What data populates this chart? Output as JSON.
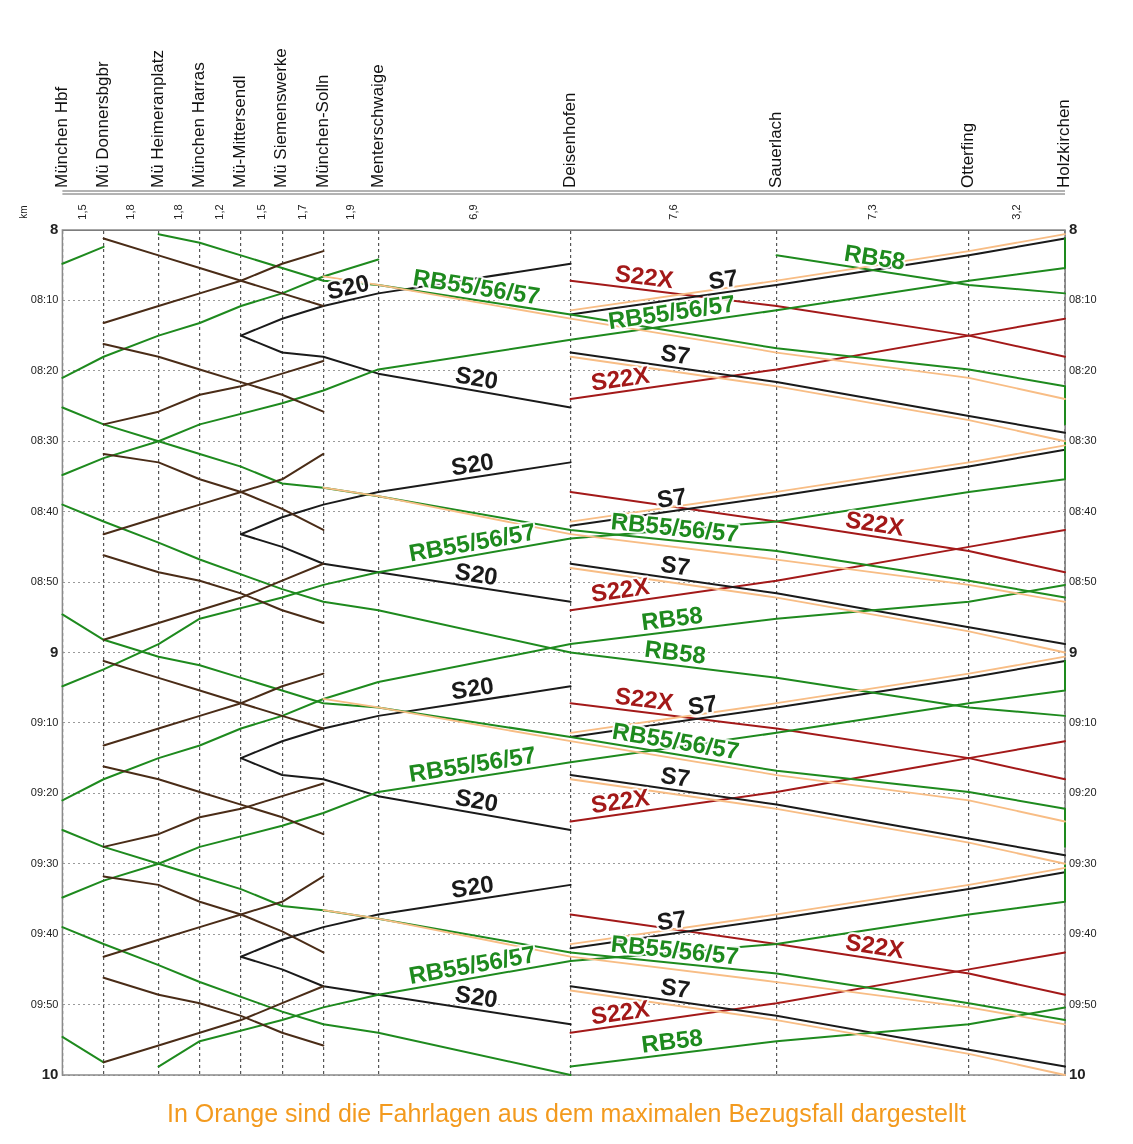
{
  "chart_data": {
    "type": "line",
    "categories": [
      "München Hbf",
      null,
      null,
      "Mü Donnersbgbr",
      null,
      null,
      null,
      "Mü Heimeranplatz",
      null,
      null,
      "München Harras",
      null,
      null,
      "Mü-Mittersendl",
      null,
      null,
      "Mü Siemenswerke",
      null,
      null,
      "München-Solln",
      null,
      null,
      null,
      "Menterschwaige",
      null,
      null,
      null,
      null,
      null,
      null,
      null,
      null,
      null,
      null,
      null,
      null,
      null,
      "Deisenhofen",
      null,
      null,
      null,
      null,
      null,
      null,
      null,
      null,
      null,
      null,
      null,
      null,
      null,
      null,
      "Sauerlach",
      null,
      null,
      null,
      null,
      null,
      null,
      null,
      null,
      null,
      null,
      null,
      null,
      null,
      "Otterfing",
      null,
      null,
      null,
      null,
      null,
      null,
      "Holzkirchen"
    ],
    "ylim": [
      10,
      8
    ],
    "y2lim": [
      10,
      8
    ],
    "yticks": [
      8,
      {
        "value": 8.1667,
        "label": "08:10"
      },
      {
        "value": 8.3333,
        "label": "08:20"
      },
      {
        "value": 8.5,
        "label": "08:30"
      },
      {
        "value": 8.6667,
        "label": "08:40"
      },
      {
        "value": 8.8333,
        "label": "08:50"
      },
      9,
      {
        "value": 9.1667,
        "label": "09:10"
      },
      {
        "value": 9.3333,
        "label": "09:20"
      },
      {
        "value": 9.5,
        "label": "09:30"
      },
      {
        "value": 9.6667,
        "label": "09:40"
      },
      {
        "value": 9.8333,
        "label": "09:50"
      },
      10
    ],
    "y2ticks": [
      8,
      {
        "value": 8.1667,
        "label": "08:10"
      },
      {
        "value": 8.3333,
        "label": "08:20"
      },
      {
        "value": 8.5,
        "label": "08:30"
      },
      {
        "value": 8.6667,
        "label": "08:40"
      },
      {
        "value": 8.8333,
        "label": "08:50"
      },
      9,
      {
        "value": 9.1667,
        "label": "09:10"
      },
      {
        "value": 9.3333,
        "label": "09:20"
      },
      {
        "value": 9.5,
        "label": "09:30"
      },
      {
        "value": 9.6667,
        "label": "09:40"
      },
      {
        "value": 9.8333,
        "label": "09:50"
      },
      10
    ],
    "grid": true,
    "legend": false,
    "marker": "none",
    "line_style": "solid",
    "series": [
      {
        "color": "#f8bd85",
        "x": [
          "Holzkirchen",
          "Otterfing",
          "Sauerlach",
          "Deisenhofen"
        ],
        "values": [
          8.01,
          8.05,
          8.12,
          8.19
        ]
      },
      {
        "color": "#f8bd85",
        "x": [
          "Deisenhofen",
          "Sauerlach",
          "Otterfing",
          "Holzkirchen"
        ],
        "values": [
          8.3,
          8.37,
          8.45,
          8.5
        ]
      },
      {
        "color": "#f8bd85",
        "x": [
          "Holzkirchen",
          "Otterfing",
          "Sauerlach",
          "Deisenhofen"
        ],
        "values": [
          8.51,
          8.55,
          8.62,
          8.69
        ]
      },
      {
        "color": "#f8bd85",
        "x": [
          "Deisenhofen",
          "Sauerlach",
          "Otterfing",
          "Holzkirchen"
        ],
        "values": [
          8.8,
          8.87,
          8.95,
          9.0
        ]
      },
      {
        "color": "#f8bd85",
        "x": [
          "München-Solln",
          "Menterschwaige",
          "Deisenhofen",
          "Sauerlach",
          "Otterfing",
          "Holzkirchen"
        ],
        "values": [
          8.61,
          8.63,
          8.72,
          8.78,
          8.84,
          8.88
        ]
      },
      {
        "color": "#f8bd85",
        "x": [
          "München-Solln",
          "Menterschwaige",
          "Deisenhofen",
          "Sauerlach",
          "Otterfing",
          "Holzkirchen"
        ],
        "values": [
          8.11,
          8.13,
          8.21,
          8.29,
          8.35,
          8.4
        ]
      },
      {
        "color": "#f8bd85",
        "x": [
          "Holzkirchen",
          "Otterfing",
          "Sauerlach",
          "Deisenhofen"
        ],
        "values": [
          9.01,
          9.05,
          9.12,
          9.19
        ]
      },
      {
        "color": "#f8bd85",
        "x": [
          "Deisenhofen",
          "Sauerlach",
          "Otterfing",
          "Holzkirchen"
        ],
        "values": [
          9.3,
          9.37,
          9.45,
          9.5
        ]
      },
      {
        "color": "#f8bd85",
        "x": [
          "Holzkirchen",
          "Otterfing",
          "Sauerlach",
          "Deisenhofen"
        ],
        "values": [
          9.51,
          9.55,
          9.62,
          9.69
        ]
      },
      {
        "color": "#f8bd85",
        "x": [
          "Deisenhofen",
          "Sauerlach",
          "Otterfing",
          "Holzkirchen"
        ],
        "values": [
          9.8,
          9.87,
          9.95,
          10.0
        ]
      },
      {
        "color": "#f8bd85",
        "x": [
          "München-Solln",
          "Menterschwaige",
          "Deisenhofen",
          "Sauerlach",
          "Otterfing",
          "Holzkirchen"
        ],
        "values": [
          9.61,
          9.63,
          9.72,
          9.78,
          9.84,
          9.88
        ]
      },
      {
        "color": "#f8bd85",
        "x": [
          "München-Solln",
          "Menterschwaige",
          "Deisenhofen",
          "Sauerlach",
          "Otterfing",
          "Holzkirchen"
        ],
        "values": [
          9.11,
          9.13,
          9.21,
          9.29,
          9.35,
          9.4
        ]
      },
      {
        "color": "#4a2c17",
        "x": [
          "Mü Donnersbgbr",
          "Mü Heimeranplatz",
          "München Harras",
          "Mü-Mittersendl",
          "Mü Siemenswerke",
          "München-Solln"
        ],
        "values": [
          8.02,
          8.06,
          8.09,
          8.12,
          8.15,
          8.18
        ]
      },
      {
        "color": "#4a2c17",
        "x": [
          "München-Solln",
          "Mü Siemenswerke",
          "Mü-Mittersendl",
          "München Harras",
          "Mü Heimeranplatz",
          "Mü Donnersbgbr"
        ],
        "values": [
          8.05,
          8.08,
          8.12,
          8.15,
          8.18,
          8.22
        ]
      },
      {
        "color": "#4a2c17",
        "x": [
          "Mü Donnersbgbr",
          "Mü Heimeranplatz",
          "München Harras",
          "Mü-Mittersendl",
          "Mü Siemenswerke",
          "München-Solln"
        ],
        "values": [
          8.27,
          8.3,
          8.33,
          8.36,
          8.39,
          8.43
        ]
      },
      {
        "color": "#4a2c17",
        "x": [
          "München-Solln",
          "Mü Siemenswerke",
          "Mü-Mittersendl",
          "München Harras",
          "Mü Heimeranplatz",
          "Mü Donnersbgbr"
        ],
        "values": [
          8.31,
          8.34,
          8.37,
          8.39,
          8.43,
          8.46
        ]
      },
      {
        "color": "#4a2c17",
        "x": [
          "Mü Donnersbgbr",
          "Mü Heimeranplatz",
          "München Harras",
          "Mü-Mittersendl",
          "Mü Siemenswerke",
          "München-Solln"
        ],
        "values": [
          8.53,
          8.55,
          8.59,
          8.62,
          8.66,
          8.71
        ]
      },
      {
        "color": "#4a2c17",
        "x": [
          "München-Solln",
          "Mü Siemenswerke",
          "Mü-Mittersendl",
          "München Harras",
          "Mü Heimeranplatz",
          "Mü Donnersbgbr"
        ],
        "values": [
          8.53,
          8.59,
          8.62,
          8.65,
          8.68,
          8.72
        ]
      },
      {
        "color": "#4a2c17",
        "x": [
          "Mü Donnersbgbr",
          "Mü Heimeranplatz",
          "München Harras",
          "Mü-Mittersendl",
          "Mü Siemenswerke",
          "München-Solln"
        ],
        "values": [
          8.77,
          8.81,
          8.83,
          8.86,
          8.9,
          8.93
        ]
      },
      {
        "color": "#4a2c17",
        "x": [
          "München-Solln",
          "Mü Siemenswerke",
          "Mü-Mittersendl",
          "München Harras",
          "Mü Heimeranplatz",
          "Mü Donnersbgbr"
        ],
        "values": [
          8.79,
          8.83,
          8.87,
          8.9,
          8.93,
          8.97
        ]
      },
      {
        "color": "#4a2c17",
        "x": [
          "Mü Donnersbgbr",
          "Mü Heimeranplatz",
          "München Harras",
          "Mü-Mittersendl",
          "Mü Siemenswerke",
          "München-Solln"
        ],
        "values": [
          9.02,
          9.06,
          9.09,
          9.12,
          9.15,
          9.18
        ]
      },
      {
        "color": "#4a2c17",
        "x": [
          "München-Solln",
          "Mü Siemenswerke",
          "Mü-Mittersendl",
          "München Harras",
          "Mü Heimeranplatz",
          "Mü Donnersbgbr"
        ],
        "values": [
          9.05,
          9.08,
          9.12,
          9.15,
          9.18,
          9.22
        ]
      },
      {
        "color": "#4a2c17",
        "x": [
          "Mü Donnersbgbr",
          "Mü Heimeranplatz",
          "München Harras",
          "Mü-Mittersendl",
          "Mü Siemenswerke",
          "München-Solln"
        ],
        "values": [
          9.27,
          9.3,
          9.33,
          9.36,
          9.39,
          9.43
        ]
      },
      {
        "color": "#4a2c17",
        "x": [
          "München-Solln",
          "Mü Siemenswerke",
          "Mü-Mittersendl",
          "München Harras",
          "Mü Heimeranplatz",
          "Mü Donnersbgbr"
        ],
        "values": [
          9.31,
          9.34,
          9.37,
          9.39,
          9.43,
          9.46
        ]
      },
      {
        "color": "#4a2c17",
        "x": [
          "Mü Donnersbgbr",
          "Mü Heimeranplatz",
          "München Harras",
          "Mü-Mittersendl",
          "Mü Siemenswerke",
          "München-Solln"
        ],
        "values": [
          9.53,
          9.55,
          9.59,
          9.62,
          9.66,
          9.71
        ]
      },
      {
        "color": "#4a2c17",
        "x": [
          "München-Solln",
          "Mü Siemenswerke",
          "Mü-Mittersendl",
          "München Harras",
          "Mü Heimeranplatz",
          "Mü Donnersbgbr"
        ],
        "values": [
          9.53,
          9.59,
          9.62,
          9.65,
          9.68,
          9.72
        ]
      },
      {
        "color": "#4a2c17",
        "x": [
          "Mü Donnersbgbr",
          "Mü Heimeranplatz",
          "München Harras",
          "Mü-Mittersendl",
          "Mü Siemenswerke",
          "München-Solln"
        ],
        "values": [
          9.77,
          9.81,
          9.83,
          9.86,
          9.9,
          9.93
        ]
      },
      {
        "color": "#4a2c17",
        "x": [
          "München-Solln",
          "Mü Siemenswerke",
          "Mü-Mittersendl",
          "München Harras",
          "Mü Heimeranplatz",
          "Mü Donnersbgbr"
        ],
        "values": [
          9.79,
          9.83,
          9.87,
          9.9,
          9.93,
          9.97
        ]
      },
      {
        "name": "RB55/56/57",
        "color": "#1e8a1e",
        "x": [
          "Holzkirchen",
          "Holzkirchen",
          "Otterfing",
          "Sauerlach",
          "Deisenhofen",
          "Menterschwaige",
          "München-Solln",
          "Mü Siemenswerke",
          "München Harras",
          "Mü Heimeranplatz",
          "Mü Donnersbgbr",
          "München Hbf"
        ],
        "values": [
          8.02,
          8.09,
          8.12,
          8.19,
          8.26,
          8.33,
          8.38,
          8.41,
          8.46,
          8.5,
          8.54,
          8.58
        ]
      },
      {
        "name": "RB55/56/57",
        "color": "#1e8a1e",
        "x": [
          "München Hbf",
          "Mü Donnersbgbr",
          "Mü Heimeranplatz",
          "München Harras",
          "Mü-Mittersendl",
          "Mü Siemenswerke",
          "München-Solln",
          "Menterschwaige",
          "Deisenhofen",
          "Sauerlach",
          "Otterfing",
          "Holzkirchen"
        ],
        "values": [
          8.42,
          8.46,
          8.5,
          8.53,
          8.56,
          8.6,
          8.61,
          8.63,
          8.71,
          8.76,
          8.83,
          8.87
        ]
      },
      {
        "name": "RB55/56/57",
        "color": "#1e8a1e",
        "x": [
          "Mü Heimeranplatz",
          "München Harras",
          "Mü-Mittersendl",
          "Mü Siemenswerke",
          "München-Solln",
          "Menterschwaige",
          "Deisenhofen",
          "Sauerlach",
          "Otterfing",
          "Holzkirchen",
          "Holzkirchen"
        ],
        "values": [
          8.01,
          8.03,
          8.06,
          8.09,
          8.12,
          8.13,
          8.2,
          8.28,
          8.33,
          8.37,
          8.46
        ]
      },
      {
        "name": "RB55/56/57",
        "color": "#1e8a1e",
        "x": [
          "München Hbf",
          "Mü Donnersbgbr",
          "Mü Heimeranplatz",
          "München Harras",
          "Mü-Mittersendl",
          "Mü Siemenswerke",
          "München-Solln",
          "Menterschwaige",
          "Deisenhofen",
          "Sauerlach",
          "Otterfing",
          "Holzkirchen",
          "Holzkirchen"
        ],
        "values": [
          8.91,
          8.97,
          9.01,
          9.03,
          9.06,
          9.09,
          9.12,
          9.13,
          9.2,
          9.28,
          9.33,
          9.37,
          9.46
        ]
      },
      {
        "color": "#1e8a1e",
        "x": [
          "Mü Donnersbgbr",
          "München Hbf"
        ],
        "values": [
          8.04,
          8.08
        ]
      },
      {
        "name": "RB55/56/57",
        "color": "#1e8a1e",
        "x": [
          "Holzkirchen",
          "Holzkirchen",
          "Otterfing",
          "Sauerlach",
          "Deisenhofen",
          "Menterschwaige",
          "München-Solln",
          "Mü Siemenswerke",
          "München Harras",
          "Mü Heimeranplatz",
          "Mü Donnersbgbr",
          "München Hbf"
        ],
        "values": [
          8.5,
          8.59,
          8.62,
          8.69,
          8.73,
          8.81,
          8.84,
          8.87,
          8.92,
          8.98,
          9.04,
          9.08
        ]
      },
      {
        "name": "RB58",
        "color": "#1e8a1e",
        "x": [
          "Sauerlach",
          "Otterfing",
          "Holzkirchen"
        ],
        "values": [
          8.06,
          8.13,
          8.15
        ]
      },
      {
        "name": "RB58",
        "color": "#1e8a1e",
        "x": [
          "München Hbf",
          "Mü Donnersbgbr",
          "Mü Heimeranplatz",
          "München Harras",
          "Mü Siemenswerke",
          "München-Solln",
          "Menterschwaige",
          "Deisenhofen",
          "Sauerlach",
          "Otterfing",
          "Holzkirchen"
        ],
        "values": [
          8.65,
          8.69,
          8.74,
          8.78,
          8.85,
          8.88,
          8.9,
          9.0,
          9.06,
          9.13,
          9.15
        ]
      },
      {
        "color": "#1e8a1e",
        "x": [
          "Menterschwaige",
          "München-Solln",
          "Mü Siemenswerke",
          "Mü-Mittersendl",
          "München Harras",
          "Mü Heimeranplatz",
          "Mü Donnersbgbr",
          "München Hbf"
        ],
        "values": [
          8.07,
          8.11,
          8.15,
          8.18,
          8.22,
          8.25,
          8.3,
          8.35
        ]
      },
      {
        "name": "RB58",
        "color": "#1e8a1e",
        "x": [
          "Holzkirchen",
          "Otterfing",
          "Sauerlach",
          "Deisenhofen",
          "Menterschwaige",
          "München-Solln",
          "Mü Siemenswerke",
          "Mü-Mittersendl",
          "München Harras",
          "Mü Heimeranplatz",
          "Mü Donnersbgbr",
          "München Hbf"
        ],
        "values": [
          8.84,
          8.88,
          8.92,
          8.98,
          9.07,
          9.11,
          9.15,
          9.18,
          9.22,
          9.25,
          9.3,
          9.35
        ]
      },
      {
        "name": "RB55/56/57",
        "color": "#1e8a1e",
        "x": [
          "Holzkirchen",
          "Holzkirchen",
          "Otterfing",
          "Sauerlach",
          "Deisenhofen",
          "Menterschwaige",
          "München-Solln",
          "Mü Siemenswerke",
          "München Harras",
          "Mü Heimeranplatz",
          "Mü Donnersbgbr",
          "München Hbf"
        ],
        "values": [
          9.02,
          9.09,
          9.12,
          9.19,
          9.26,
          9.33,
          9.38,
          9.41,
          9.46,
          9.5,
          9.54,
          9.58
        ]
      },
      {
        "name": "RB55/56/57",
        "color": "#1e8a1e",
        "x": [
          "München Hbf",
          "Mü Donnersbgbr",
          "Mü Heimeranplatz",
          "München Harras",
          "Mü-Mittersendl",
          "Mü Siemenswerke",
          "München-Solln",
          "Menterschwaige",
          "Deisenhofen",
          "Sauerlach",
          "Otterfing",
          "Holzkirchen"
        ],
        "values": [
          9.42,
          9.46,
          9.5,
          9.53,
          9.56,
          9.6,
          9.61,
          9.63,
          9.71,
          9.76,
          9.83,
          9.87
        ]
      },
      {
        "color": "#1e8a1e",
        "x": [
          "München Hbf",
          "Mü Donnersbgbr"
        ],
        "values": [
          9.91,
          9.97
        ]
      },
      {
        "name": "RB55/56/57",
        "color": "#1e8a1e",
        "x": [
          "Holzkirchen",
          "Holzkirchen",
          "Otterfing",
          "Sauerlach",
          "Deisenhofen",
          "Menterschwaige",
          "München-Solln",
          "Mü Siemenswerke",
          "München Harras",
          "Mü Heimeranplatz"
        ],
        "values": [
          9.5,
          9.59,
          9.62,
          9.69,
          9.73,
          9.81,
          9.84,
          9.87,
          9.92,
          9.98
        ]
      },
      {
        "color": "#1e8a1e",
        "x": [
          "München Hbf",
          "Mü Donnersbgbr",
          "Mü Heimeranplatz",
          "München Harras",
          "Mü Siemenswerke",
          "München-Solln",
          "Menterschwaige",
          "Deisenhofen"
        ],
        "values": [
          9.65,
          9.69,
          9.74,
          9.78,
          9.85,
          9.88,
          9.9,
          10.0
        ]
      },
      {
        "name": "RB58",
        "color": "#1e8a1e",
        "x": [
          "Holzkirchen",
          "Otterfing",
          "Sauerlach",
          "Deisenhofen"
        ],
        "values": [
          9.84,
          9.88,
          9.92,
          9.98
        ]
      },
      {
        "name": "S7",
        "color": "#1a1a1a",
        "x": [
          "Holzkirchen",
          "Otterfing",
          "Sauerlach",
          "Deisenhofen"
        ],
        "values": [
          8.02,
          8.06,
          8.13,
          8.2
        ]
      },
      {
        "name": "S20",
        "color": "#1a1a1a",
        "x": [
          "Deisenhofen",
          "Menterschwaige",
          "München-Solln",
          "Mü Siemenswerke",
          "Mü-Mittersendl"
        ],
        "values": [
          8.08,
          8.15,
          8.18,
          8.21,
          8.25
        ]
      },
      {
        "name": "S20",
        "color": "#1a1a1a",
        "x": [
          "Mü-Mittersendl",
          "Mü Siemenswerke",
          "München-Solln",
          "Menterschwaige",
          "Deisenhofen"
        ],
        "values": [
          8.25,
          8.29,
          8.3,
          8.34,
          8.42
        ]
      },
      {
        "name": "S7",
        "color": "#1a1a1a",
        "x": [
          "Deisenhofen",
          "Sauerlach",
          "Otterfing",
          "Holzkirchen"
        ],
        "values": [
          8.29,
          8.36,
          8.44,
          8.48
        ]
      },
      {
        "name": "S7",
        "color": "#1a1a1a",
        "x": [
          "Holzkirchen",
          "Otterfing",
          "Sauerlach",
          "Deisenhofen"
        ],
        "values": [
          8.52,
          8.56,
          8.63,
          8.7
        ]
      },
      {
        "name": "S20",
        "color": "#1a1a1a",
        "x": [
          "Deisenhofen",
          "Menterschwaige",
          "München-Solln",
          "Mü Siemenswerke",
          "Mü-Mittersendl"
        ],
        "values": [
          8.55,
          8.62,
          8.65,
          8.68,
          8.72
        ]
      },
      {
        "name": "S20",
        "color": "#1a1a1a",
        "x": [
          "Mü-Mittersendl",
          "Mü Siemenswerke",
          "München-Solln",
          "Menterschwaige",
          "Deisenhofen"
        ],
        "values": [
          8.72,
          8.75,
          8.79,
          8.81,
          8.88
        ]
      },
      {
        "name": "S7",
        "color": "#1a1a1a",
        "x": [
          "Deisenhofen",
          "Sauerlach",
          "Otterfing",
          "Holzkirchen"
        ],
        "values": [
          8.79,
          8.86,
          8.94,
          8.98
        ]
      },
      {
        "name": "S7",
        "color": "#1a1a1a",
        "x": [
          "Holzkirchen",
          "Otterfing",
          "Sauerlach",
          "Deisenhofen"
        ],
        "values": [
          9.02,
          9.06,
          9.13,
          9.2
        ]
      },
      {
        "name": "S20",
        "color": "#1a1a1a",
        "x": [
          "Deisenhofen",
          "Menterschwaige",
          "München-Solln",
          "Mü Siemenswerke",
          "Mü-Mittersendl"
        ],
        "values": [
          9.08,
          9.15,
          9.18,
          9.21,
          9.25
        ]
      },
      {
        "name": "S20",
        "color": "#1a1a1a",
        "x": [
          "Mü-Mittersendl",
          "Mü Siemenswerke",
          "München-Solln",
          "Menterschwaige",
          "Deisenhofen"
        ],
        "values": [
          9.25,
          9.29,
          9.3,
          9.34,
          9.42
        ]
      },
      {
        "name": "S7",
        "color": "#1a1a1a",
        "x": [
          "Deisenhofen",
          "Sauerlach",
          "Otterfing",
          "Holzkirchen"
        ],
        "values": [
          9.29,
          9.36,
          9.44,
          9.48
        ]
      },
      {
        "name": "S7",
        "color": "#1a1a1a",
        "x": [
          "Holzkirchen",
          "Otterfing",
          "Sauerlach",
          "Deisenhofen"
        ],
        "values": [
          9.52,
          9.56,
          9.63,
          9.7
        ]
      },
      {
        "name": "S20",
        "color": "#1a1a1a",
        "x": [
          "Deisenhofen",
          "Menterschwaige",
          "München-Solln",
          "Mü Siemenswerke",
          "Mü-Mittersendl"
        ],
        "values": [
          9.55,
          9.62,
          9.65,
          9.68,
          9.72
        ]
      },
      {
        "name": "S20",
        "color": "#1a1a1a",
        "x": [
          "Mü-Mittersendl",
          "Mü Siemenswerke",
          "München-Solln",
          "Menterschwaige",
          "Deisenhofen"
        ],
        "values": [
          9.72,
          9.75,
          9.79,
          9.81,
          9.88
        ]
      },
      {
        "name": "S7",
        "color": "#1a1a1a",
        "x": [
          "Deisenhofen",
          "Sauerlach",
          "Otterfing",
          "Holzkirchen"
        ],
        "values": [
          9.79,
          9.86,
          9.94,
          9.98
        ]
      },
      {
        "name": "S22X",
        "color": "#a31919",
        "x": [
          "Deisenhofen",
          "Sauerlach",
          "Otterfing",
          "Holzkirchen"
        ],
        "values": [
          8.12,
          8.18,
          8.25,
          8.3
        ]
      },
      {
        "name": "S22X",
        "color": "#a31919",
        "x": [
          "Holzkirchen",
          "Otterfing",
          "Sauerlach",
          "Deisenhofen"
        ],
        "values": [
          8.21,
          8.25,
          8.33,
          8.4
        ]
      },
      {
        "name": "S22X",
        "color": "#a31919",
        "x": [
          "Deisenhofen",
          "Sauerlach",
          "Otterfing",
          "Holzkirchen"
        ],
        "values": [
          8.62,
          8.69,
          8.76,
          8.81
        ]
      },
      {
        "name": "S22X",
        "color": "#a31919",
        "x": [
          "Holzkirchen",
          "Otterfing",
          "Sauerlach",
          "Deisenhofen"
        ],
        "values": [
          8.71,
          8.75,
          8.83,
          8.9
        ]
      },
      {
        "name": "S22X",
        "color": "#a31919",
        "x": [
          "Deisenhofen",
          "Sauerlach",
          "Otterfing",
          "Holzkirchen"
        ],
        "values": [
          9.12,
          9.18,
          9.25,
          9.3
        ]
      },
      {
        "name": "S22X",
        "color": "#a31919",
        "x": [
          "Holzkirchen",
          "Otterfing",
          "Sauerlach",
          "Deisenhofen"
        ],
        "values": [
          9.21,
          9.25,
          9.33,
          9.4
        ]
      },
      {
        "name": "S22X",
        "color": "#a31919",
        "x": [
          "Deisenhofen",
          "Sauerlach",
          "Otterfing",
          "Holzkirchen"
        ],
        "values": [
          9.62,
          9.69,
          9.76,
          9.81
        ]
      },
      {
        "name": "S22X",
        "color": "#a31919",
        "x": [
          "Holzkirchen",
          "Otterfing",
          "Sauerlach",
          "Deisenhofen"
        ],
        "values": [
          9.71,
          9.75,
          9.83,
          9.9
        ]
      }
    ],
    "annotations": [
      "km",
      "1,5",
      "1,8",
      "1,8",
      "1,2",
      "1,5",
      "1,7",
      "1,9",
      "6,9",
      "7,6",
      "7,3",
      "3,2",
      "In Orange sind die Fahrlagen aus dem maximalen Bezugsfall dargestellt"
    ]
  }
}
